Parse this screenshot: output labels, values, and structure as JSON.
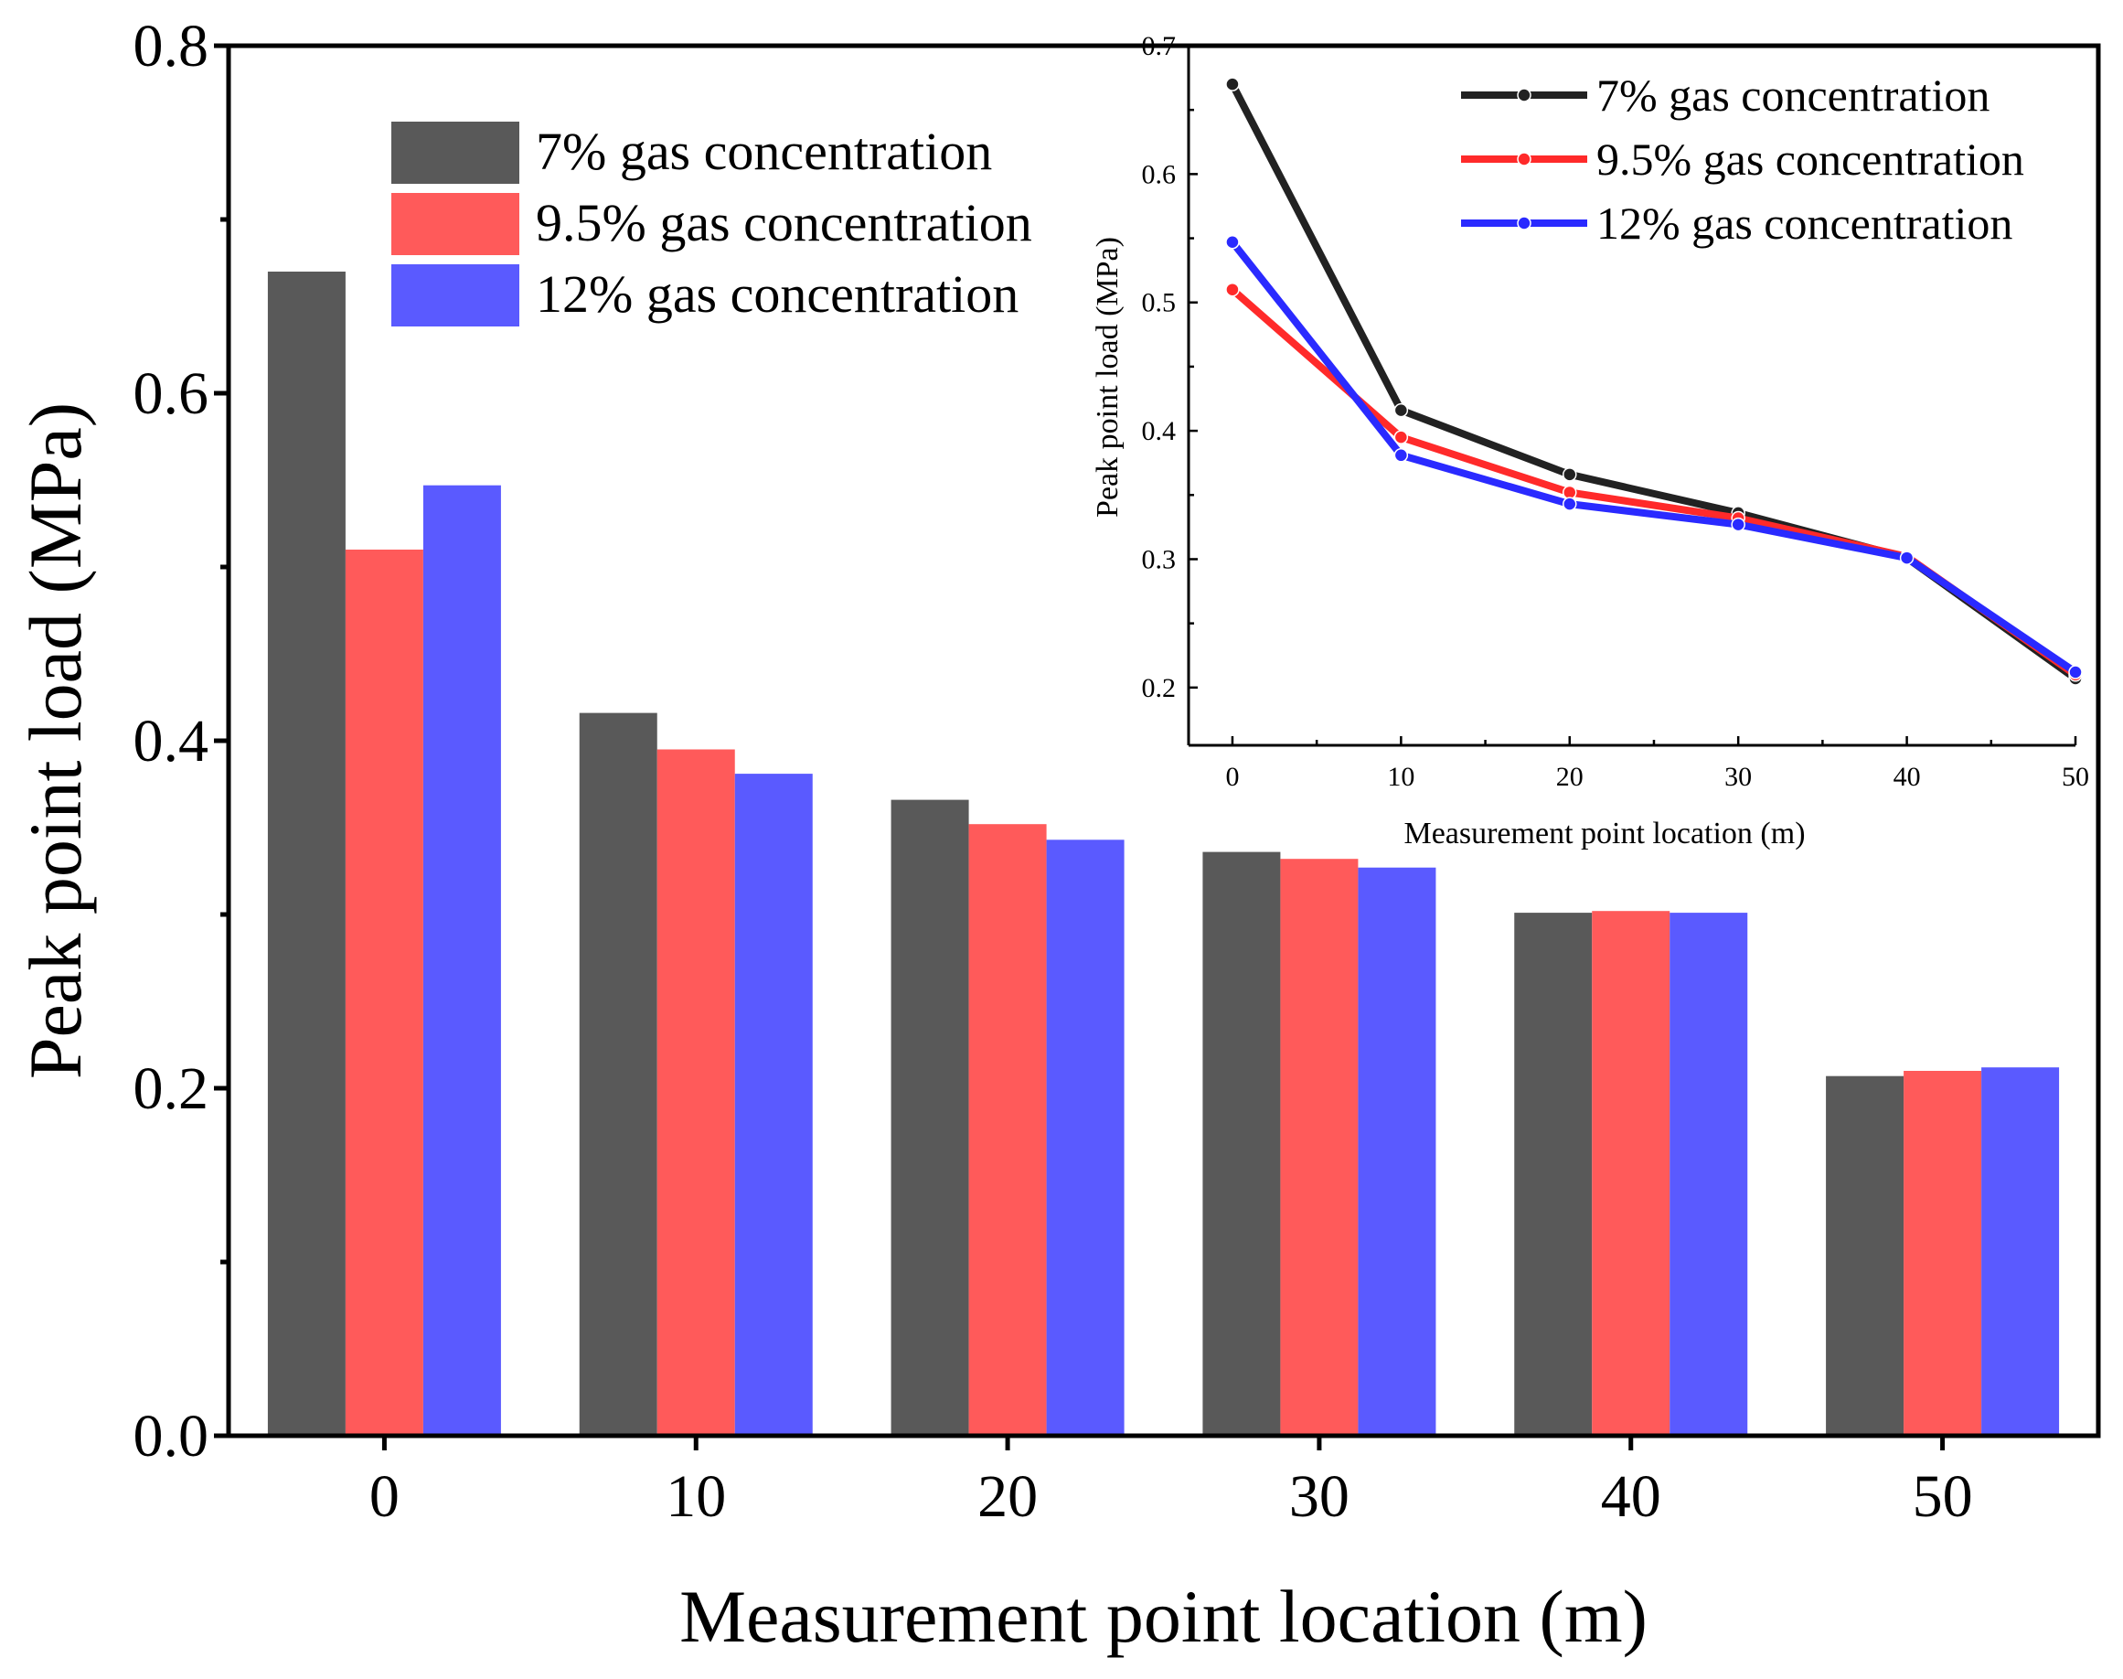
{
  "chart_data": [
    {
      "type": "bar",
      "title": "",
      "xlabel": "Measurement point location (m)",
      "ylabel": "Peak point load (MPa)",
      "categories": [
        "0",
        "10",
        "20",
        "30",
        "40",
        "50"
      ],
      "ylim": [
        0,
        0.8
      ],
      "yticks": [
        "0.0",
        "0.2",
        "0.4",
        "0.6",
        "0.8"
      ],
      "legend_position": "top-left",
      "series": [
        {
          "name": "7% gas concentration",
          "color": "#595959",
          "values": [
            0.67,
            0.416,
            0.366,
            0.336,
            0.301,
            0.207
          ]
        },
        {
          "name": "9.5% gas concentration",
          "color": "#FF5A5A",
          "values": [
            0.51,
            0.395,
            0.352,
            0.332,
            0.302,
            0.21
          ]
        },
        {
          "name": "12% gas concentration",
          "color": "#5A5AFF",
          "values": [
            0.547,
            0.381,
            0.343,
            0.327,
            0.301,
            0.212
          ]
        }
      ]
    },
    {
      "type": "line",
      "title": "",
      "xlabel": "Measurement point location (m)",
      "ylabel": "Peak point load (MPa)",
      "x": [
        0,
        10,
        20,
        30,
        40,
        50
      ],
      "xlim": [
        -2.6,
        50
      ],
      "ylim": [
        0.155,
        0.7
      ],
      "xticks": [
        "0",
        "10",
        "20",
        "30",
        "40",
        "50"
      ],
      "yticks": [
        "0.2",
        "0.3",
        "0.4",
        "0.5",
        "0.6",
        "0.7"
      ],
      "legend_position": "top-right",
      "series": [
        {
          "name": "7% gas concentration",
          "color": "#222222",
          "values": [
            0.67,
            0.416,
            0.366,
            0.336,
            0.301,
            0.207
          ]
        },
        {
          "name": "9.5% gas concentration",
          "color": "#FF2A2A",
          "values": [
            0.51,
            0.395,
            0.352,
            0.332,
            0.302,
            0.21
          ]
        },
        {
          "name": "12% gas concentration",
          "color": "#2A2AFF",
          "values": [
            0.547,
            0.381,
            0.343,
            0.327,
            0.301,
            0.212
          ]
        }
      ]
    }
  ]
}
